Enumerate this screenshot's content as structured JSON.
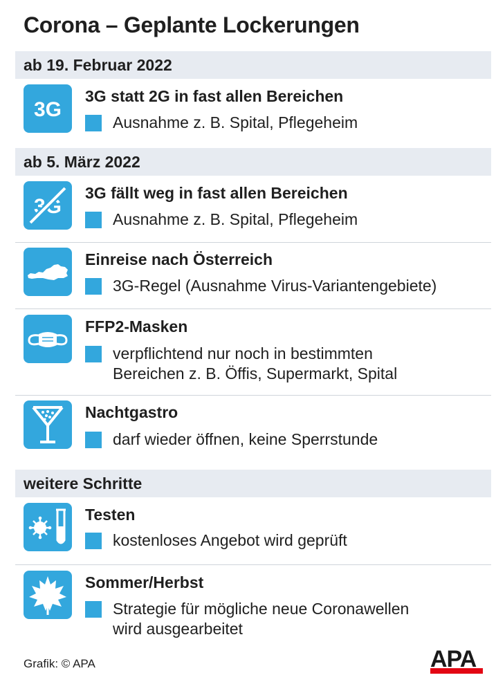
{
  "title": "Corona – Geplante Lockerungen",
  "sections": [
    {
      "label": "ab 19. Februar 2022"
    },
    {
      "label": "ab 5. März 2022"
    },
    {
      "label": "weitere Schritte"
    }
  ],
  "items": [
    {
      "heading": "3G statt 2G in fast allen Bereichen",
      "lines": [
        "Ausnahme z. B. Spital, Pflegeheim"
      ],
      "icon": "3g-icon",
      "icon_text": "3G"
    },
    {
      "heading": "3G fällt weg in fast allen Bereichen",
      "lines": [
        "Ausnahme z. B. Spital, Pflegeheim"
      ],
      "icon": "3g-crossed-icon",
      "icon_text": "3G"
    },
    {
      "heading": "Einreise nach Österreich",
      "lines": [
        "3G-Regel (Ausnahme Virus-Variantengebiete)"
      ],
      "icon": "austria-map-icon"
    },
    {
      "heading": "FFP2-Masken",
      "lines": [
        "verpflichtend nur noch in bestimmten",
        "Bereichen z. B. Öffis, Supermarkt, Spital"
      ],
      "icon": "face-mask-icon"
    },
    {
      "heading": "Nachtgastro",
      "lines": [
        "darf wieder öffnen, keine Sperrstunde"
      ],
      "icon": "cocktail-glass-icon"
    },
    {
      "heading": "Testen",
      "lines": [
        "kostenloses Angebot wird geprüft"
      ],
      "icon": "virus-test-tube-icon"
    },
    {
      "heading": "Sommer/Herbst",
      "lines": [
        "Strategie für mögliche neue Coronawellen",
        "wird ausgearbeitet"
      ],
      "icon": "leaf-icon"
    }
  ],
  "credit": "Grafik: © APA",
  "logo_text": "APA",
  "colors": {
    "accent": "#33a7dd",
    "band": "#e7ebf1",
    "logo_red": "#e30613"
  }
}
